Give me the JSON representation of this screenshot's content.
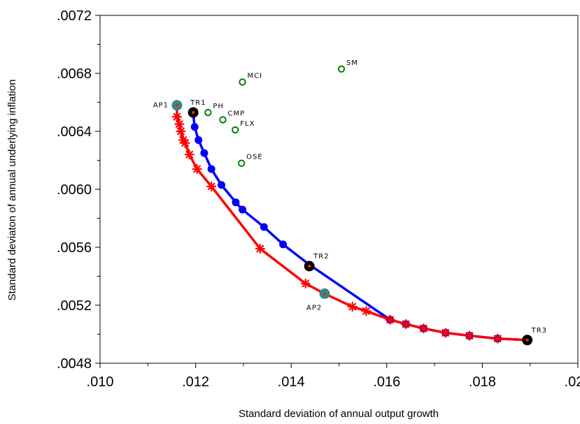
{
  "chart_data": {
    "type": "scatter",
    "xlabel": "Standard deviation of annual output growth",
    "ylabel": "Standard deviaton of annual underlying inflation",
    "xlim": [
      0.01,
      0.02
    ],
    "ylim": [
      0.0048,
      0.0072
    ],
    "x_ticks": [
      {
        "value": 0.01,
        "label": ".010"
      },
      {
        "value": 0.012,
        "label": ".012"
      },
      {
        "value": 0.014,
        "label": ".014"
      },
      {
        "value": 0.016,
        "label": ".016"
      },
      {
        "value": 0.018,
        "label": ".018"
      },
      {
        "value": 0.02,
        "label": ".020"
      }
    ],
    "y_ticks": [
      {
        "value": 0.0048,
        "label": ".0048"
      },
      {
        "value": 0.0052,
        "label": ".0052"
      },
      {
        "value": 0.0056,
        "label": ".0056"
      },
      {
        "value": 0.006,
        "label": ".0060"
      },
      {
        "value": 0.0064,
        "label": ".0064"
      },
      {
        "value": 0.0068,
        "label": ".0068"
      },
      {
        "value": 0.0072,
        "label": ".0072"
      }
    ],
    "grid": false,
    "series": [
      {
        "color": "#0000ff",
        "marker": "dot",
        "points": [
          [
            0.01195,
            0.00652
          ],
          [
            0.01198,
            0.00643
          ],
          [
            0.01206,
            0.00634
          ],
          [
            0.01218,
            0.00625
          ],
          [
            0.01233,
            0.00614
          ],
          [
            0.01254,
            0.00603
          ],
          [
            0.01284,
            0.00591
          ],
          [
            0.01298,
            0.00586
          ],
          [
            0.01343,
            0.00574
          ],
          [
            0.01383,
            0.00562
          ],
          [
            0.01438,
            0.00548
          ],
          [
            0.01607,
            0.0051
          ],
          [
            0.0164,
            0.00507
          ],
          [
            0.01677,
            0.00504
          ],
          [
            0.01723,
            0.00501
          ],
          [
            0.01773,
            0.00499
          ],
          [
            0.01832,
            0.00497
          ],
          [
            0.01894,
            0.00496
          ]
        ]
      },
      {
        "color": "#ff0000",
        "marker": "asterisk",
        "points": [
          [
            0.01161,
            0.00658
          ],
          [
            0.01161,
            0.0065
          ],
          [
            0.01166,
            0.00645
          ],
          [
            0.01169,
            0.0064
          ],
          [
            0.01174,
            0.00634
          ],
          [
            0.01178,
            0.00632
          ],
          [
            0.01187,
            0.00624
          ],
          [
            0.01203,
            0.00614
          ],
          [
            0.01233,
            0.00602
          ],
          [
            0.01335,
            0.00559
          ],
          [
            0.0143,
            0.00535
          ],
          [
            0.0147,
            0.00528
          ],
          [
            0.01528,
            0.00519
          ],
          [
            0.01557,
            0.00516
          ],
          [
            0.01607,
            0.0051
          ],
          [
            0.0164,
            0.00507
          ],
          [
            0.01677,
            0.00504
          ],
          [
            0.01723,
            0.00501
          ],
          [
            0.01773,
            0.00499
          ],
          [
            0.01832,
            0.00497
          ],
          [
            0.01894,
            0.00496
          ]
        ]
      }
    ],
    "special_points": [
      {
        "label": "AP1",
        "x": 0.01161,
        "y": 0.00658,
        "fill": "#2e8b8b",
        "anchor": "left"
      },
      {
        "label": "TR1",
        "x": 0.01195,
        "y": 0.00653,
        "fill": "#000000",
        "anchor": "above"
      },
      {
        "label": "TR2",
        "x": 0.01438,
        "y": 0.00547,
        "fill": "#000000",
        "anchor": "above-right"
      },
      {
        "label": "AP2",
        "x": 0.0147,
        "y": 0.00528,
        "fill": "#2e8b8b",
        "anchor": "below-left"
      },
      {
        "label": "TR3",
        "x": 0.01894,
        "y": 0.00496,
        "fill": "#000000",
        "anchor": "above-right"
      }
    ],
    "other_rules": [
      {
        "label": "SM",
        "x": 0.01505,
        "y": 0.00683
      },
      {
        "label": "MCI",
        "x": 0.01298,
        "y": 0.00674
      },
      {
        "label": "PH",
        "x": 0.01226,
        "y": 0.00653
      },
      {
        "label": "CMP",
        "x": 0.01257,
        "y": 0.00648
      },
      {
        "label": "FLX",
        "x": 0.01283,
        "y": 0.00641
      },
      {
        "label": "OSE",
        "x": 0.01296,
        "y": 0.00618
      }
    ],
    "colors": {
      "blue_line": "#0000ff",
      "red_line": "#ff0000",
      "green_marker": "#008000",
      "teal_marker": "#2e8b8b",
      "black_marker": "#000000"
    }
  }
}
